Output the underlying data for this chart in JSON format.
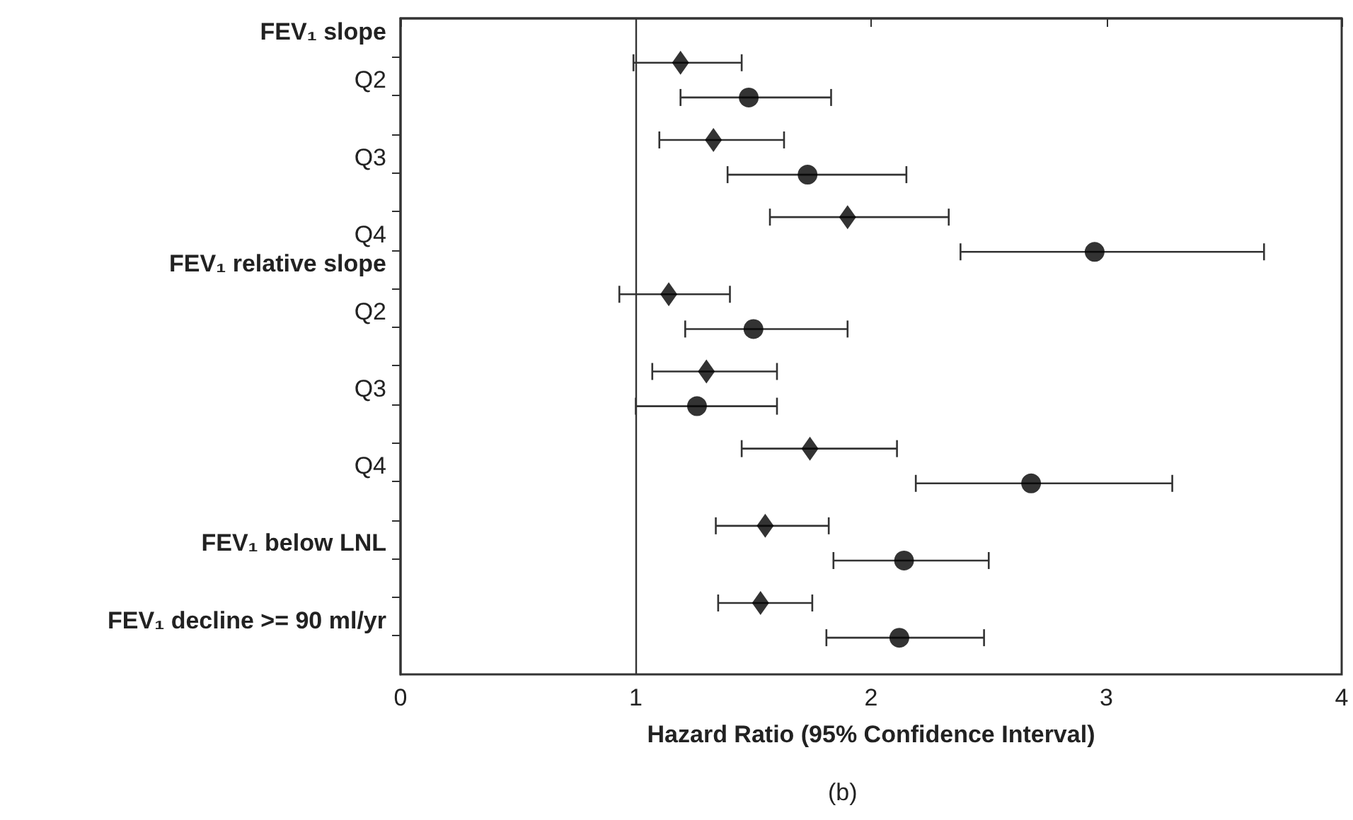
{
  "chart_data": {
    "type": "scatter",
    "orientation": "horizontal",
    "xlabel": "Hazard Ratio (95% Confidence Interval)",
    "categories": [
      "FEV₁ slope",
      "Q2",
      "Q3",
      "Q4",
      "FEV₁ relative slope",
      "Q2",
      "Q3",
      "Q4",
      "FEV₁ below LNL",
      "FEV₁ decline >= 90 ml/yr"
    ],
    "series": [
      {
        "color": "#000000",
        "marker": "diamond",
        "values": [
          null,
          1.19,
          1.33,
          1.9,
          null,
          1.14,
          1.3,
          1.74,
          1.55,
          1.53
        ],
        "errors": [
          null,
          [
            0.99,
            1.45
          ],
          [
            1.1,
            1.63
          ],
          [
            1.57,
            2.33
          ],
          null,
          [
            0.93,
            1.4
          ],
          [
            1.07,
            1.6
          ],
          [
            1.45,
            2.11
          ],
          [
            1.34,
            1.82
          ],
          [
            1.35,
            1.75
          ]
        ]
      },
      {
        "color": "#000000",
        "marker": "circle",
        "values": [
          null,
          1.48,
          1.73,
          2.95,
          null,
          1.5,
          1.26,
          2.68,
          2.14,
          2.12
        ],
        "errors": [
          null,
          [
            1.19,
            1.83
          ],
          [
            1.39,
            2.15
          ],
          [
            2.38,
            3.67
          ],
          null,
          [
            1.21,
            1.9
          ],
          [
            1.0,
            1.6
          ],
          [
            2.19,
            3.28
          ],
          [
            1.84,
            2.5
          ],
          [
            1.81,
            2.48
          ]
        ]
      }
    ],
    "xlim": [
      0,
      4
    ],
    "xticks": [
      0,
      1,
      2,
      3,
      4
    ],
    "ref_lines": [
      {
        "axis": "x",
        "value": 1,
        "color": "#333333"
      }
    ],
    "annotations": [
      "(b)"
    ]
  }
}
